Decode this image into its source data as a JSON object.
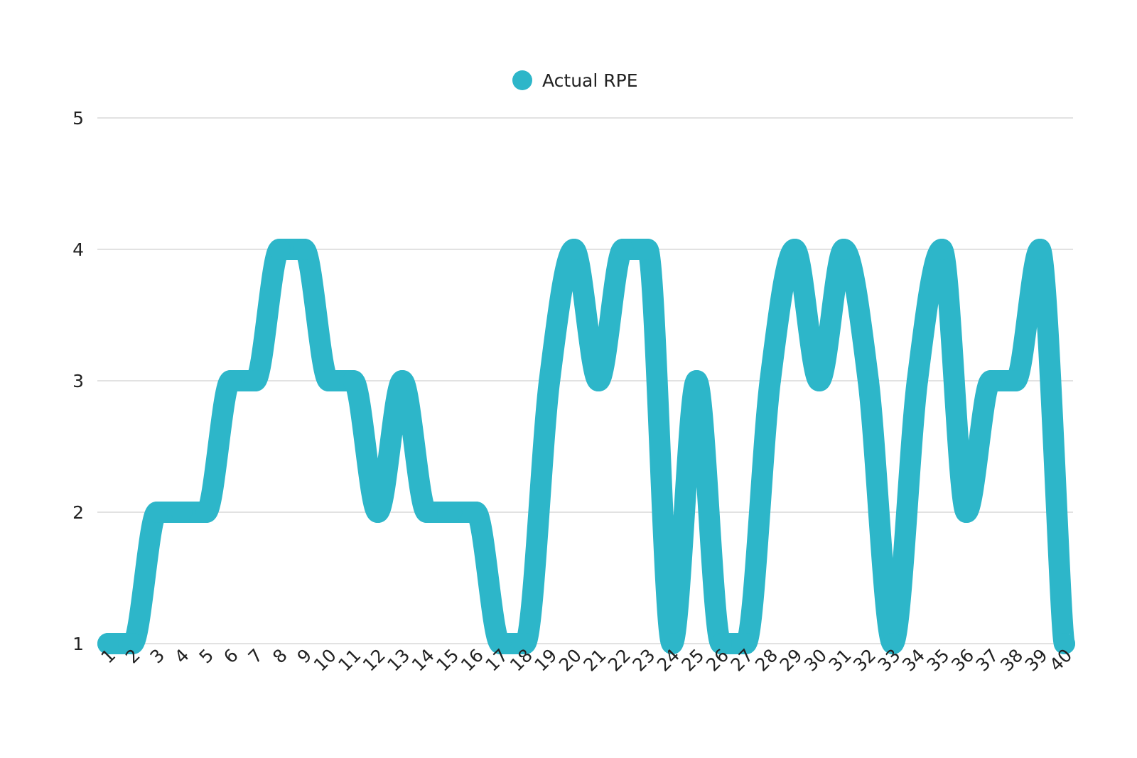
{
  "chart_data": {
    "type": "line",
    "smooth": true,
    "legend": {
      "position": "top-center"
    },
    "series": [
      {
        "name": "Actual RPE",
        "color": "#2db6c9",
        "values": [
          1,
          1,
          2,
          2,
          2,
          3,
          3,
          4,
          4,
          3,
          3,
          2,
          3,
          2,
          2,
          2,
          1,
          1,
          3,
          4,
          3,
          4,
          4,
          1,
          3,
          1,
          1,
          3,
          4,
          3,
          4,
          3,
          1,
          3,
          4,
          2,
          3,
          3,
          4,
          1
        ]
      }
    ],
    "categories": [
      "1",
      "2",
      "3",
      "4",
      "5",
      "6",
      "7",
      "8",
      "9",
      "10",
      "11",
      "12",
      "13",
      "14",
      "15",
      "16",
      "17",
      "18",
      "19",
      "20",
      "21",
      "22",
      "23",
      "24",
      "25",
      "26",
      "27",
      "28",
      "29",
      "30",
      "31",
      "32",
      "33",
      "34",
      "35",
      "36",
      "37",
      "38",
      "39",
      "40"
    ],
    "y_ticks": [
      "1",
      "2",
      "3",
      "4",
      "5"
    ],
    "ylim": [
      1,
      5
    ],
    "grid": true,
    "title": "",
    "xlabel": "",
    "ylabel": ""
  }
}
